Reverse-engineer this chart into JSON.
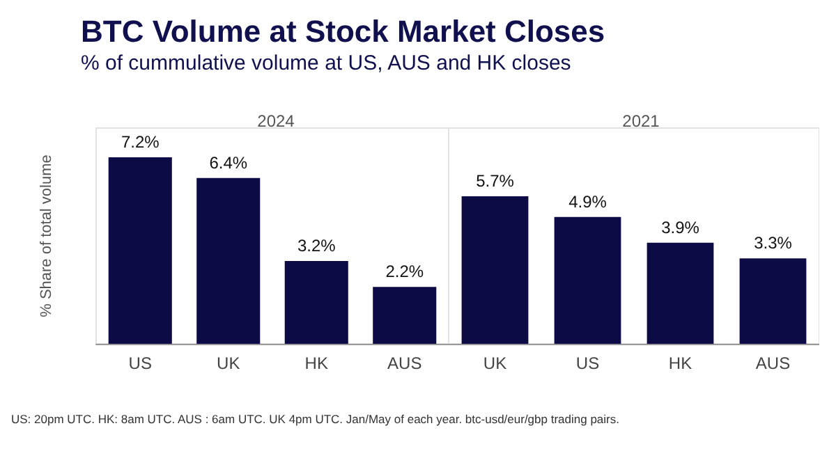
{
  "chart_data": [
    {
      "type": "other",
      "title": "BTC Volume at Stock Market Closes",
      "subtitle": "% of cummulative volume at US, AUS and HK closes"
    },
    {
      "type": "bar",
      "title": "2024",
      "ylabel": "% Share of total volume",
      "categories": [
        "US",
        "UK",
        "HK",
        "AUS"
      ],
      "values": [
        7.2,
        6.4,
        3.2,
        2.2
      ],
      "value_labels": [
        "7.2%",
        "6.4%",
        "3.2%",
        "2.2%"
      ],
      "color": "#0d0b45",
      "tick_labels": "x"
    },
    {
      "type": "bar",
      "title": "2021",
      "categories": [
        "UK",
        "US",
        "HK",
        "AUS"
      ],
      "values": [
        5.7,
        4.9,
        3.9,
        3.3
      ],
      "value_labels": [
        "5.7%",
        "4.9%",
        "3.9%",
        "3.3%"
      ],
      "color": "#0d0b45",
      "tick_labels": "x"
    },
    {
      "type": "other",
      "annotations": [
        "US: 20pm UTC. HK: 8am UTC. AUS : 6am UTC. UK 4pm UTC. Jan/May of each year. btc-usd/eur/gbp trading pairs."
      ]
    }
  ]
}
